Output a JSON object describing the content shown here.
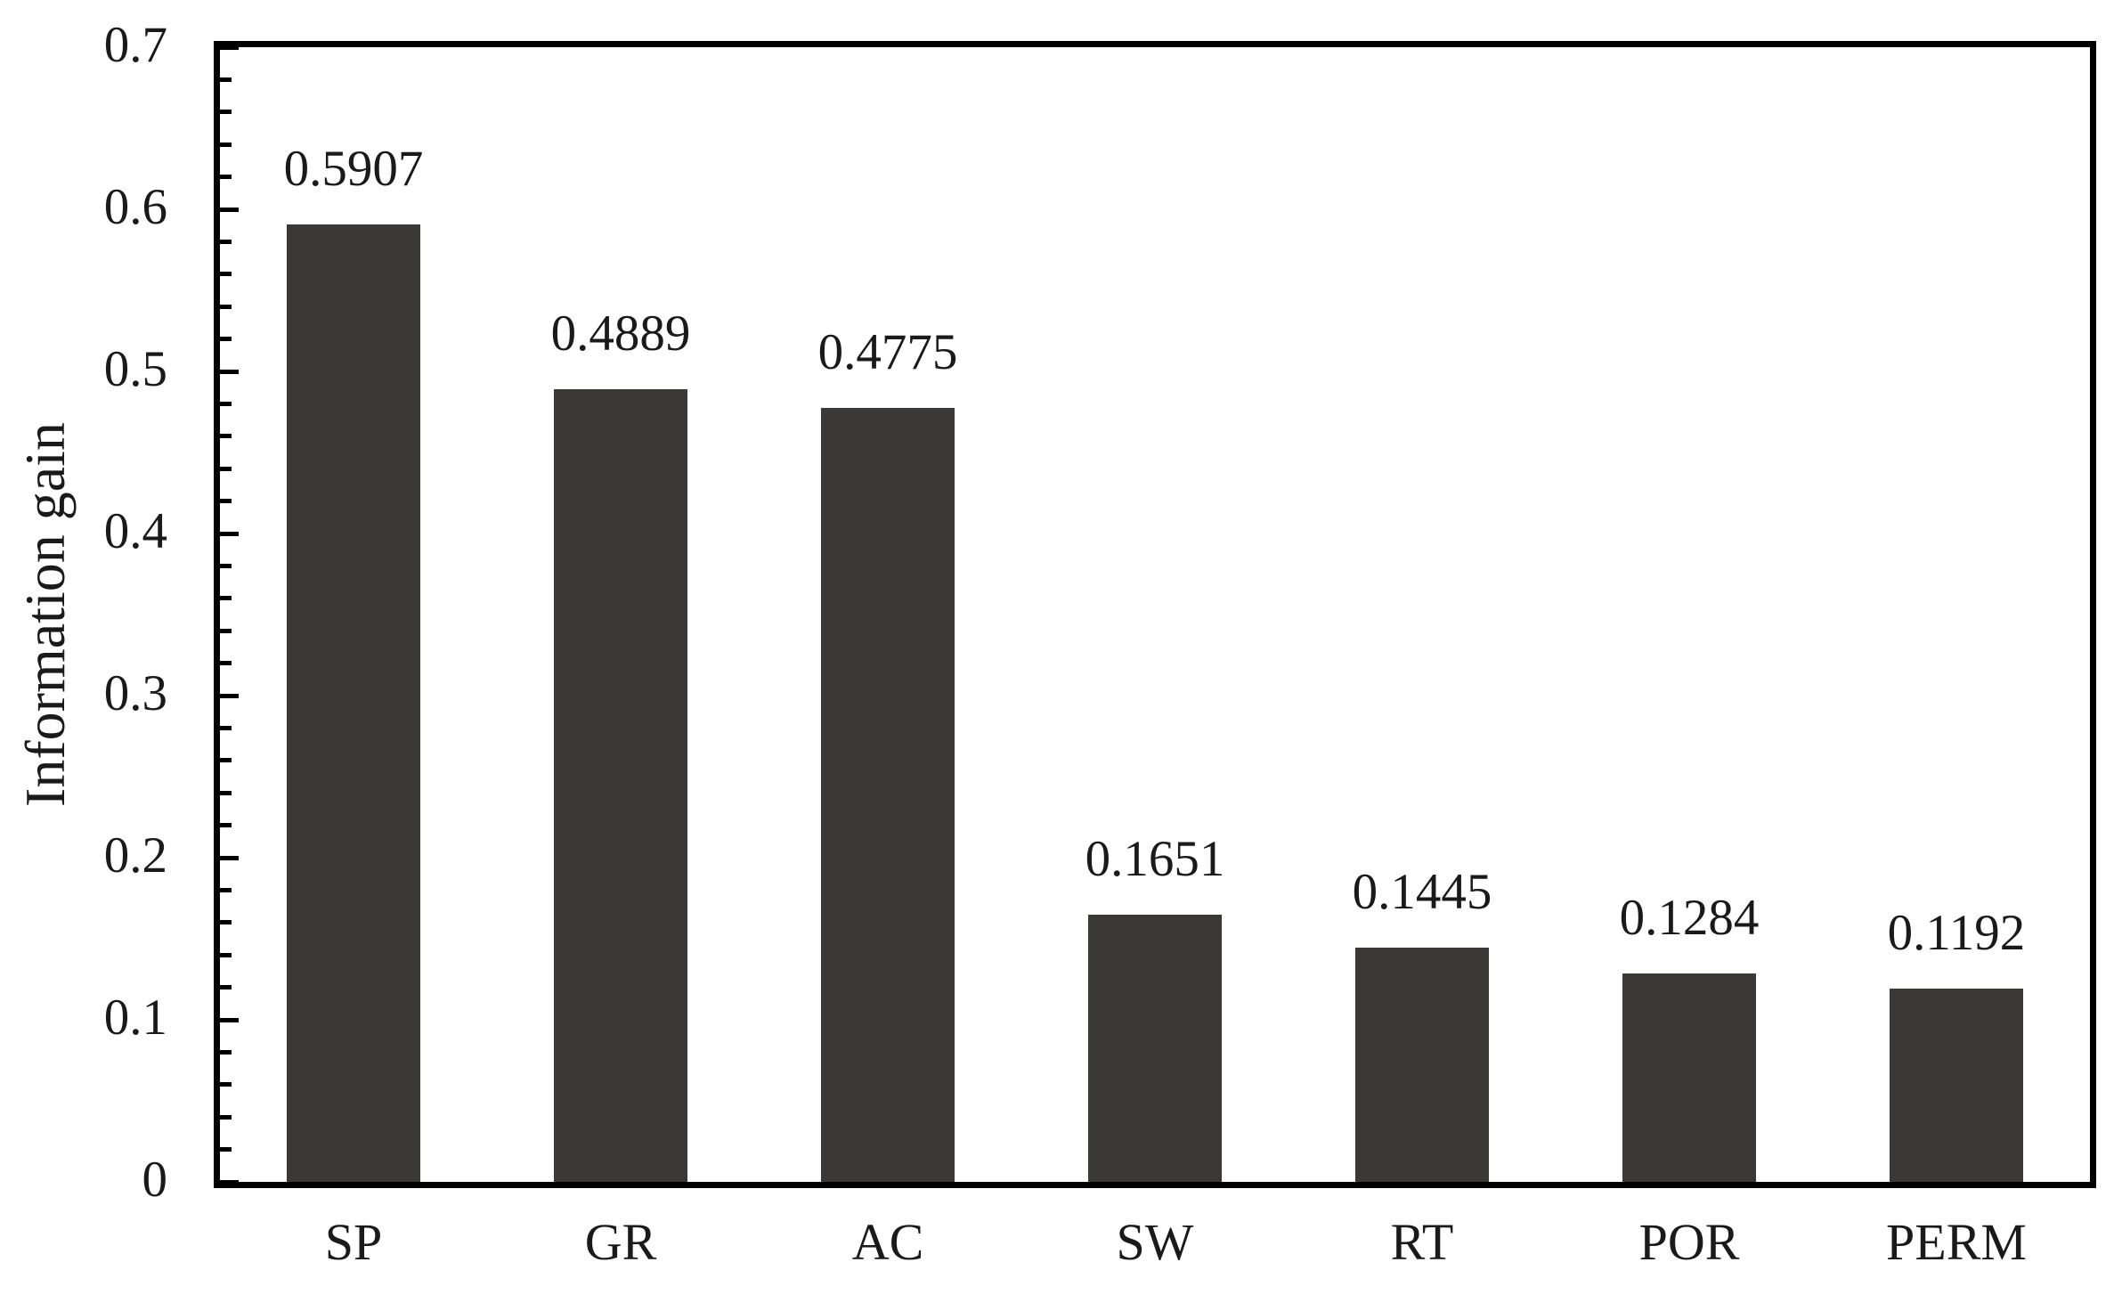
{
  "chart_data": {
    "type": "bar",
    "title": "",
    "ylabel": "Information gain",
    "xlabel": "",
    "categories": [
      "SP",
      "GR",
      "AC",
      "SW",
      "RT",
      "POR",
      "PERM"
    ],
    "values": [
      0.5907,
      0.4889,
      0.4775,
      0.1651,
      0.1445,
      0.1284,
      0.1192
    ],
    "value_labels": [
      "0.5907",
      "0.4889",
      "0.4775",
      "0.1651",
      "0.1445",
      "0.1284",
      "0.1192"
    ],
    "ylim": [
      0,
      0.7
    ],
    "ytick_labels": [
      "0",
      "0.1",
      "0.2",
      "0.3",
      "0.4",
      "0.5",
      "0.6",
      "0.7"
    ],
    "ytick_major_step": 0.1,
    "ytick_minor_step": 0.02,
    "tick_direction": "in",
    "grid": false,
    "legend": "none",
    "frame": "full-box",
    "bar_color": "#3b3838",
    "axis_color": "#000000",
    "text_color": "#1a1a1a",
    "background_color": "#ffffff"
  }
}
